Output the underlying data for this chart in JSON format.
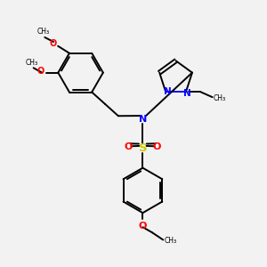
{
  "background_color": "#f2f2f2",
  "bond_color": "#000000",
  "N_color": "#0000ff",
  "O_color": "#ff0000",
  "S_color": "#cccc00",
  "figsize": [
    3.0,
    3.0
  ],
  "dpi": 100,
  "xlim": [
    0,
    10
  ],
  "ylim": [
    0,
    10
  ]
}
